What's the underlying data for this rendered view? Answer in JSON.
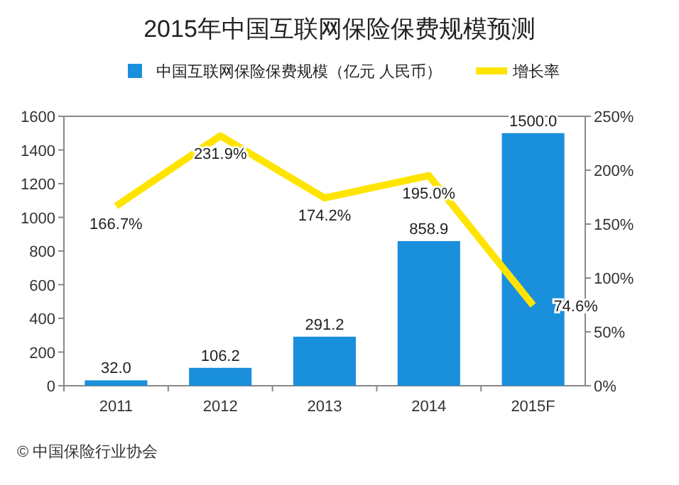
{
  "chart_data": {
    "type": "bar",
    "title": "2015年中国互联网保险保费规模预测",
    "categories": [
      "2011",
      "2012",
      "2013",
      "2014",
      "2015F"
    ],
    "series": [
      {
        "name": "中国互联网保险保费规模（亿元 人民币）",
        "color": "#1a8fdc",
        "values": [
          32.0,
          106.2,
          291.2,
          858.9,
          1500.0
        ],
        "value_labels": [
          "32.0",
          "106.2",
          "291.2",
          "858.9",
          "1500.0"
        ]
      },
      {
        "name": "增长率",
        "type": "line",
        "axis": "y2",
        "color": "#ffe400",
        "values": [
          166.7,
          231.9,
          174.2,
          195.0,
          74.6
        ],
        "value_labels": [
          "166.7%",
          "231.9%",
          "174.2%",
          "195.0%",
          "74.6%"
        ]
      }
    ],
    "ylim": [
      0,
      1600
    ],
    "yticks": [
      0,
      200,
      400,
      600,
      800,
      1000,
      1200,
      1400,
      1600
    ],
    "y2lim": [
      0,
      250
    ],
    "y2ticks": [
      {
        "value": 0,
        "label": "0%"
      },
      {
        "value": 50,
        "label": "50%"
      },
      {
        "value": 100,
        "label": "100%"
      },
      {
        "value": 150,
        "label": "150%"
      },
      {
        "value": 200,
        "label": "200%"
      },
      {
        "value": 250,
        "label": "250%"
      }
    ],
    "legend": "top",
    "annotations": [
      "© 中国保险行业协会"
    ]
  }
}
